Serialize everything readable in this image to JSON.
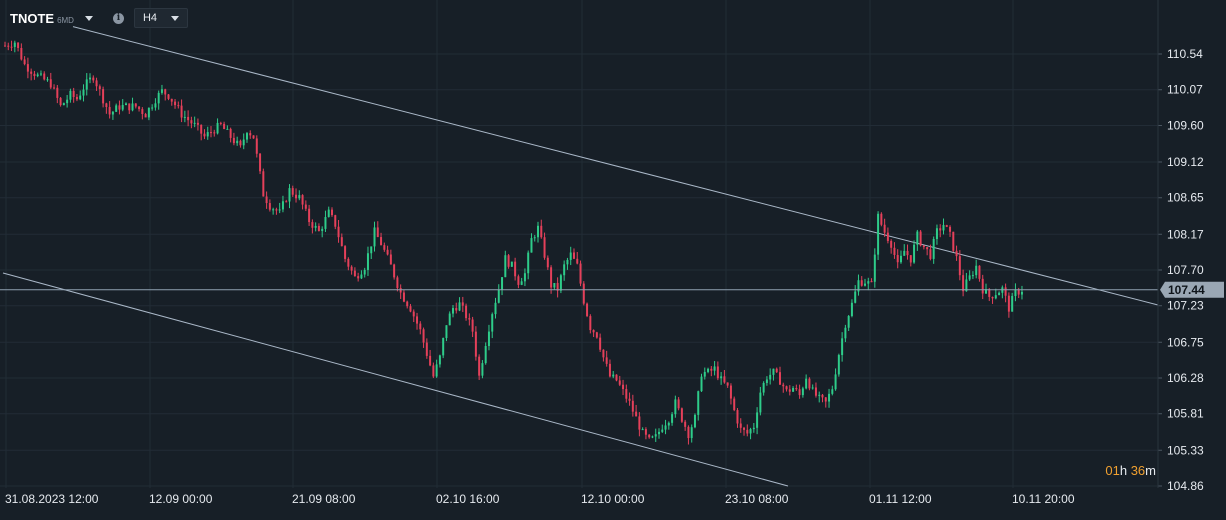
{
  "header": {
    "symbol": "TNOTE",
    "symbol_sub": "6MD",
    "timeframe": "H4",
    "info_icon": "info-icon"
  },
  "countdown": {
    "hours": "01",
    "h_label": "h",
    "minutes": "36",
    "m_label": "m"
  },
  "colors": {
    "background": "#171f27",
    "bull": "#2ecc8a",
    "bear": "#e5405a",
    "trendline": "#aab8c8",
    "price_line": "#8fa0b0",
    "price_badge": "#9aa7b4",
    "text": "#e6eaef"
  },
  "chart_data": {
    "type": "candlestick",
    "title": "",
    "xlabel": "",
    "ylabel": "",
    "ylim": [
      104.62,
      110.9
    ],
    "y_ticks": [
      "110.54",
      "110.07",
      "109.60",
      "109.12",
      "108.65",
      "108.17",
      "107.70",
      "107.23",
      "106.75",
      "106.28",
      "105.81",
      "105.33",
      "104.86"
    ],
    "x_tick_labels": [
      "31.08.2023 12:00",
      "12.09 00:00",
      "21.09 08:00",
      "02.10 16:00",
      "12.10 00:00",
      "23.10 08:00",
      "01.11 12:00",
      "10.11 20:00"
    ],
    "current_price": "107.44",
    "price_path": [
      [
        0,
        110.65
      ],
      [
        3,
        110.7
      ],
      [
        6,
        110.4
      ],
      [
        10,
        110.25
      ],
      [
        14,
        110.15
      ],
      [
        17,
        109.85
      ],
      [
        20,
        110.0
      ],
      [
        22,
        109.95
      ],
      [
        24,
        110.1
      ],
      [
        27,
        110.25
      ],
      [
        29,
        110.05
      ],
      [
        32,
        109.75
      ],
      [
        35,
        109.85
      ],
      [
        40,
        109.85
      ],
      [
        43,
        109.75
      ],
      [
        46,
        109.95
      ],
      [
        48,
        110.05
      ],
      [
        50,
        110.0
      ],
      [
        54,
        109.75
      ],
      [
        58,
        109.6
      ],
      [
        61,
        109.45
      ],
      [
        64,
        109.55
      ],
      [
        66,
        109.6
      ],
      [
        69,
        109.45
      ],
      [
        72,
        109.3
      ],
      [
        74,
        109.55
      ],
      [
        76,
        109.45
      ],
      [
        79,
        108.7
      ],
      [
        81,
        108.55
      ],
      [
        84,
        108.45
      ],
      [
        87,
        108.75
      ],
      [
        90,
        108.65
      ],
      [
        93,
        108.35
      ],
      [
        96,
        108.2
      ],
      [
        99,
        108.45
      ],
      [
        101,
        108.3
      ],
      [
        104,
        107.85
      ],
      [
        107,
        107.6
      ],
      [
        110,
        107.75
      ],
      [
        113,
        108.2
      ],
      [
        115,
        108.05
      ],
      [
        118,
        107.75
      ],
      [
        121,
        107.4
      ],
      [
        124,
        107.2
      ],
      [
        127,
        106.9
      ],
      [
        129,
        106.6
      ],
      [
        131,
        106.3
      ],
      [
        133,
        106.55
      ],
      [
        135,
        107.0
      ],
      [
        137,
        107.2
      ],
      [
        139,
        107.25
      ],
      [
        141,
        107.1
      ],
      [
        143,
        106.9
      ],
      [
        145,
        106.3
      ],
      [
        147,
        106.75
      ],
      [
        149,
        107.15
      ],
      [
        151,
        107.45
      ],
      [
        153,
        107.85
      ],
      [
        155,
        107.75
      ],
      [
        157,
        107.55
      ],
      [
        159,
        107.65
      ],
      [
        161,
        108.1
      ],
      [
        163,
        108.25
      ],
      [
        165,
        107.9
      ],
      [
        167,
        107.5
      ],
      [
        169,
        107.45
      ],
      [
        171,
        107.75
      ],
      [
        173,
        107.9
      ],
      [
        175,
        107.75
      ],
      [
        177,
        107.3
      ],
      [
        179,
        106.95
      ],
      [
        181,
        106.85
      ],
      [
        183,
        106.55
      ],
      [
        185,
        106.3
      ],
      [
        187,
        106.25
      ],
      [
        189,
        106.1
      ],
      [
        191,
        105.95
      ],
      [
        193,
        105.75
      ],
      [
        195,
        105.55
      ],
      [
        197,
        105.45
      ],
      [
        199,
        105.5
      ],
      [
        201,
        105.65
      ],
      [
        203,
        105.75
      ],
      [
        205,
        105.95
      ],
      [
        207,
        105.75
      ],
      [
        209,
        105.55
      ],
      [
        211,
        105.75
      ],
      [
        213,
        106.35
      ],
      [
        215,
        106.35
      ],
      [
        217,
        106.4
      ],
      [
        219,
        106.25
      ],
      [
        221,
        106.15
      ],
      [
        223,
        105.85
      ],
      [
        225,
        105.6
      ],
      [
        227,
        105.55
      ],
      [
        229,
        105.65
      ],
      [
        231,
        106.1
      ],
      [
        233,
        106.3
      ],
      [
        235,
        106.35
      ],
      [
        237,
        106.25
      ],
      [
        239,
        106.1
      ],
      [
        241,
        106.15
      ],
      [
        243,
        106.05
      ],
      [
        245,
        106.3
      ],
      [
        247,
        106.1
      ],
      [
        249,
        106.0
      ],
      [
        251,
        105.95
      ],
      [
        253,
        106.15
      ],
      [
        255,
        106.6
      ],
      [
        257,
        107.0
      ],
      [
        259,
        107.25
      ],
      [
        261,
        107.55
      ],
      [
        263,
        107.55
      ],
      [
        265,
        107.5
      ],
      [
        267,
        108.4
      ],
      [
        269,
        108.2
      ],
      [
        271,
        108.05
      ],
      [
        273,
        107.75
      ],
      [
        275,
        107.95
      ],
      [
        277,
        107.85
      ],
      [
        279,
        108.15
      ],
      [
        281,
        108.0
      ],
      [
        283,
        107.9
      ],
      [
        285,
        108.2
      ],
      [
        287,
        108.3
      ],
      [
        289,
        108.15
      ],
      [
        291,
        107.85
      ],
      [
        293,
        107.45
      ],
      [
        295,
        107.6
      ],
      [
        297,
        107.75
      ],
      [
        299,
        107.45
      ],
      [
        301,
        107.35
      ],
      [
        303,
        107.4
      ],
      [
        305,
        107.45
      ],
      [
        307,
        107.2
      ],
      [
        309,
        107.4
      ],
      [
        311,
        107.44
      ]
    ],
    "trendlines": [
      {
        "name": "upper",
        "points": [
          [
            73,
            110.9
          ],
          [
            311,
            107.5
          ],
          [
            1158,
            107.24
          ]
        ]
      },
      {
        "name": "lower",
        "points": [
          [
            3,
            107.66
          ],
          [
            788,
            104.86
          ]
        ]
      }
    ]
  }
}
